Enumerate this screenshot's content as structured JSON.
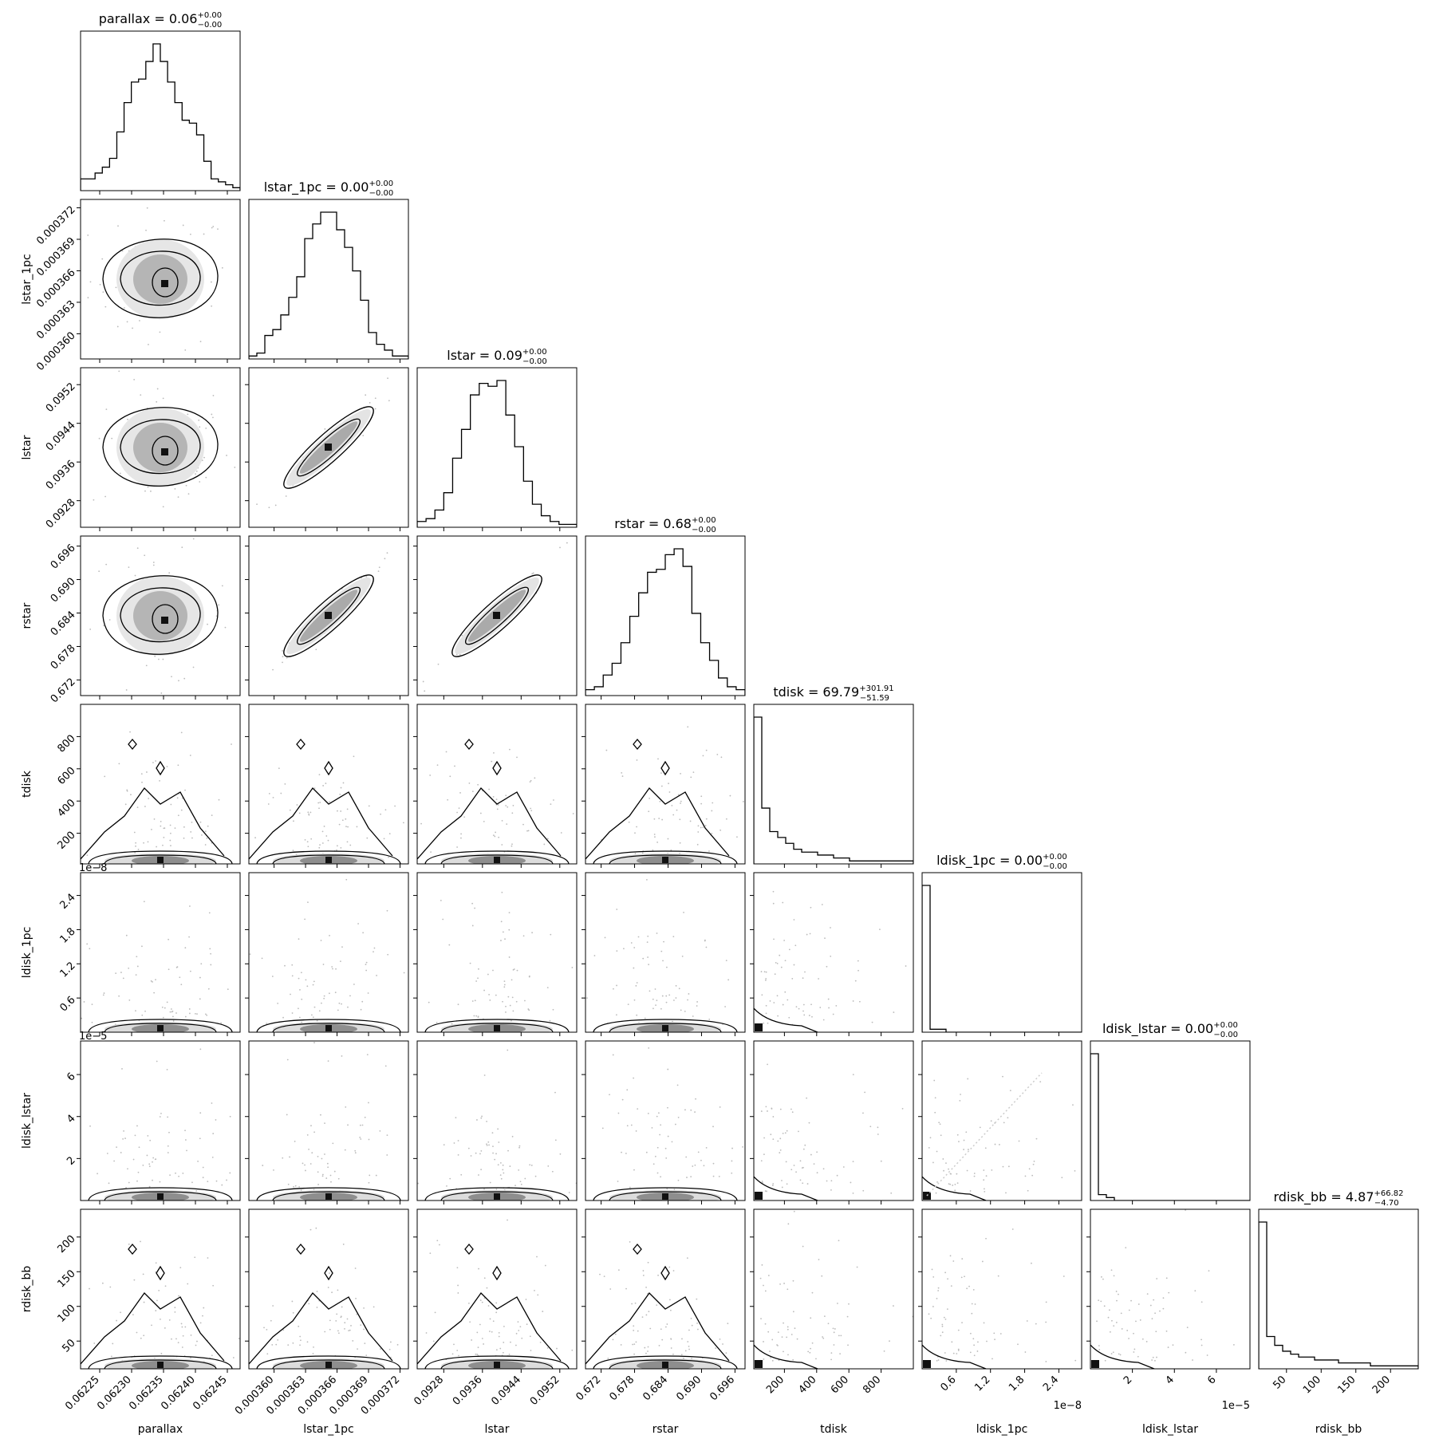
{
  "chart_data": {
    "type": "corner",
    "parameters": [
      {
        "name": "parallax",
        "range": [
          0.06222,
          0.06247
        ],
        "ticks": [
          0.06225,
          0.0623,
          0.06235,
          0.0624,
          0.06245
        ],
        "tick_labels": [
          "0.06225",
          "0.06230",
          "0.06235",
          "0.06240",
          "0.06245"
        ],
        "offset_text": "",
        "title": {
          "main": "parallax = 0.06",
          "sup": "+0.00",
          "sub": "−0.00"
        }
      },
      {
        "name": "lstar_1pc",
        "range": [
          0.0003576,
          0.0003728
        ],
        "ticks": [
          0.00036,
          0.000363,
          0.000366,
          0.000369,
          0.000372
        ],
        "tick_labels": [
          "0.000360",
          "0.000363",
          "0.000366",
          "0.000369",
          "0.000372"
        ],
        "offset_text": "",
        "title": {
          "main": "lstar_1pc = 0.00",
          "sup": "+0.00",
          "sub": "−0.00"
        }
      },
      {
        "name": "lstar",
        "range": [
          0.09225,
          0.09555
        ],
        "ticks": [
          0.0928,
          0.0936,
          0.0944,
          0.0952
        ],
        "tick_labels": [
          "0.0928",
          "0.0936",
          "0.0944",
          "0.0952"
        ],
        "offset_text": "",
        "title": {
          "main": "lstar = 0.09",
          "sup": "+0.00",
          "sub": "−0.00"
        }
      },
      {
        "name": "rstar",
        "range": [
          0.6692,
          0.6978
        ],
        "ticks": [
          0.672,
          0.678,
          0.684,
          0.69,
          0.696
        ],
        "tick_labels": [
          "0.672",
          "0.678",
          "0.684",
          "0.690",
          "0.696"
        ],
        "offset_text": "",
        "title": {
          "main": "rstar = 0.68",
          "sup": "+0.00",
          "sub": "−0.00"
        }
      },
      {
        "name": "tdisk",
        "range": [
          10,
          1000
        ],
        "ticks": [
          200,
          400,
          600,
          800
        ],
        "tick_labels": [
          "200",
          "400",
          "600",
          "800"
        ],
        "offset_text": "",
        "title": {
          "main": "tdisk = 69.79",
          "sup": "+301.91",
          "sub": "−51.59"
        }
      },
      {
        "name": "ldisk_1pc",
        "range": [
          0,
          2.8
        ],
        "ticks": [
          0.6,
          1.2,
          1.8,
          2.4
        ],
        "tick_labels": [
          "0.6",
          "1.2",
          "1.8",
          "2.4"
        ],
        "offset_text": "1e−8",
        "title": {
          "main": "ldisk_1pc = 0.00",
          "sup": "+0.00",
          "sub": "−0.00"
        }
      },
      {
        "name": "ldisk_lstar",
        "range": [
          0,
          7.6
        ],
        "ticks": [
          2,
          4,
          6
        ],
        "tick_labels": [
          "2",
          "4",
          "6"
        ],
        "offset_text": "1e−5",
        "title": {
          "main": "ldisk_lstar = 0.00",
          "sup": "+0.00",
          "sub": "−0.00"
        }
      },
      {
        "name": "rdisk_bb",
        "range": [
          10,
          240
        ],
        "ticks": [
          50,
          100,
          150,
          200
        ],
        "tick_labels": [
          "50",
          "100",
          "150",
          "200"
        ],
        "offset_text": "",
        "title": {
          "main": "rdisk_bb = 4.87",
          "sup": "+66.82",
          "sub": "−4.70"
        }
      }
    ],
    "histograms": [
      {
        "parameter": "parallax",
        "counts": [
          4,
          4,
          6,
          8,
          11,
          20,
          30,
          37,
          38,
          44,
          50,
          44,
          37,
          30,
          24,
          23,
          19,
          10,
          4,
          3,
          2,
          1
        ]
      },
      {
        "parameter": "lstar_1pc",
        "counts": [
          1,
          2,
          8,
          10,
          15,
          21,
          28,
          41,
          46,
          50,
          50,
          44,
          38,
          30,
          20,
          9,
          5,
          3,
          1,
          1
        ]
      },
      {
        "parameter": "lstar",
        "counts": [
          2,
          3,
          6,
          12,
          24,
          34,
          46,
          50,
          49,
          51,
          39,
          28,
          16,
          8,
          4,
          2,
          1,
          1
        ]
      },
      {
        "parameter": "rstar",
        "counts": [
          2,
          3,
          7,
          11,
          18,
          27,
          35,
          42,
          43,
          48,
          50,
          44,
          28,
          18,
          12,
          6,
          3,
          2
        ]
      },
      {
        "parameter": "tdisk",
        "counts": [
          50,
          19,
          11,
          9,
          7,
          5,
          4,
          4,
          3,
          3,
          2,
          2,
          1,
          1,
          1,
          1,
          1,
          1,
          1,
          1
        ]
      },
      {
        "parameter": "ldisk_1pc",
        "counts": [
          50,
          1,
          1,
          0,
          0,
          0,
          0,
          0,
          0,
          0,
          0,
          0,
          0,
          0,
          0,
          0,
          0,
          0,
          0,
          0
        ]
      },
      {
        "parameter": "ldisk_lstar",
        "counts": [
          50,
          2,
          1,
          0,
          0,
          0,
          0,
          0,
          0,
          0,
          0,
          0,
          0,
          0,
          0,
          0,
          0,
          0,
          0,
          0
        ]
      },
      {
        "parameter": "rdisk_bb",
        "counts": [
          50,
          11,
          8,
          6,
          5,
          4,
          4,
          3,
          3,
          3,
          2,
          2,
          2,
          2,
          1,
          1,
          1,
          1,
          1,
          1
        ]
      }
    ],
    "grid": false,
    "legend": "none"
  }
}
